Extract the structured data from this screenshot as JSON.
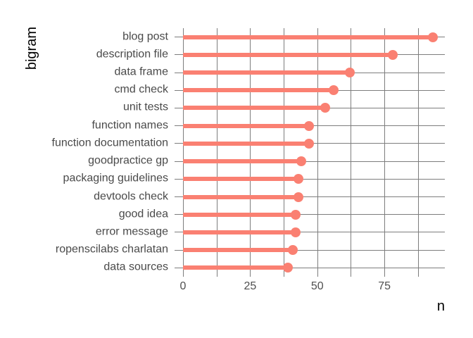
{
  "chart_data": {
    "type": "bar",
    "style": "lollipop",
    "orientation": "horizontal",
    "title": "",
    "xlabel": "n",
    "ylabel": "bigram",
    "categories": [
      "blog post",
      "description file",
      "data frame",
      "cmd check",
      "unit tests",
      "function names",
      "function documentation",
      "goodpractice gp",
      "packaging guidelines",
      "devtools check",
      "good idea",
      "error message",
      "ropenscilabs charlatan",
      "data sources"
    ],
    "values": [
      93,
      78,
      62,
      56,
      53,
      47,
      47,
      44,
      43,
      43,
      42,
      42,
      41,
      39
    ],
    "xlim": [
      0,
      97.5
    ],
    "x_major_ticks": [
      0,
      25,
      50,
      75
    ],
    "x_tick_labels": [
      "0",
      "25",
      "50",
      "75"
    ],
    "x_gridlines": [
      0,
      12.5,
      25,
      37.5,
      50,
      62.5,
      75,
      87.5
    ],
    "grid": true,
    "legend": false
  },
  "colors": {
    "background": "#ffffff",
    "lollipop": "#fa8072",
    "gridline": "#7d7d7d",
    "category_label": "#4a4a4a",
    "tick_label": "#4f4f4f",
    "axis_title": "#000000"
  }
}
